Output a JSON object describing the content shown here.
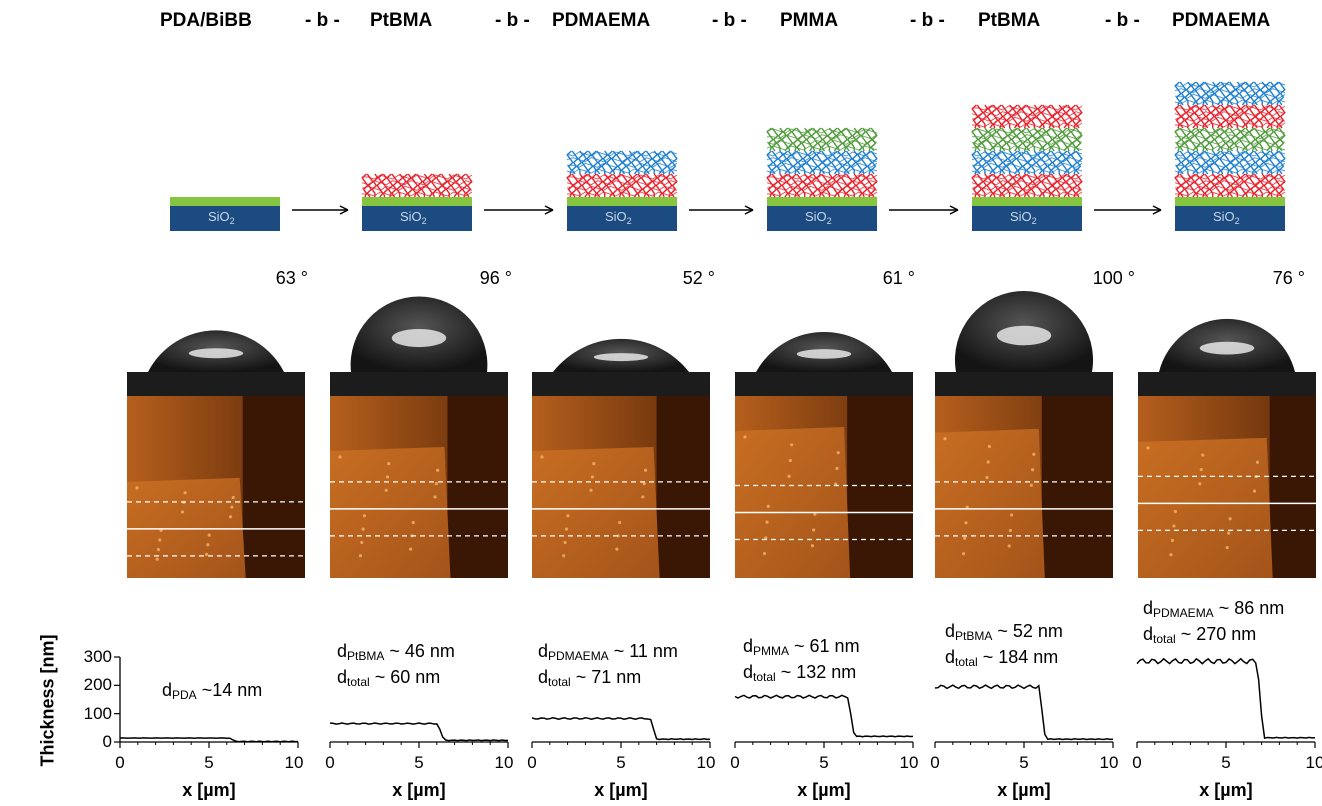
{
  "header": {
    "blocks": [
      "PDA/BiBB",
      "PtBMA",
      "PDMAEMA",
      "PMMA",
      "PtBMA",
      "PDMAEMA"
    ],
    "connector": "- b -"
  },
  "substrate_label": {
    "base": "SiO",
    "sub": "2"
  },
  "layer_colors": {
    "PtBMA": "#e8202a",
    "PDMAEMA": "#1f7fcf",
    "PMMA": "#4f9a3a",
    "PDA": "#86c540",
    "SiO2": "#1b4b80"
  },
  "schematic_stacks": [
    [],
    [
      "PtBMA"
    ],
    [
      "PtBMA",
      "PDMAEMA"
    ],
    [
      "PtBMA",
      "PDMAEMA",
      "PMMA"
    ],
    [
      "PtBMA",
      "PDMAEMA",
      "PMMA",
      "PtBMA"
    ],
    [
      "PtBMA",
      "PDMAEMA",
      "PMMA",
      "PtBMA",
      "PDMAEMA"
    ]
  ],
  "contact_angles": [
    "63 °",
    "96 °",
    "52 °",
    "61 °",
    "100 °",
    "76 °"
  ],
  "droplet_angles_deg": [
    63,
    96,
    52,
    61,
    100,
    76
  ],
  "annotations": [
    [
      {
        "base": "d",
        "sub": "PDA",
        "text": " ~14 nm"
      }
    ],
    [
      {
        "base": "d",
        "sub": "PtBMA",
        "text": " ~ 46 nm"
      },
      {
        "base": "d",
        "sub": "total",
        "text": " ~ 60 nm"
      }
    ],
    [
      {
        "base": "d",
        "sub": "PDMAEMA",
        "text": " ~ 11 nm"
      },
      {
        "base": "d",
        "sub": "total",
        "text": " ~ 71 nm"
      }
    ],
    [
      {
        "base": "d",
        "sub": "PMMA",
        "text": " ~ 61 nm"
      },
      {
        "base": "d",
        "sub": "total",
        "text": " ~ 132 nm"
      }
    ],
    [
      {
        "base": "d",
        "sub": "PtBMA",
        "text": " ~ 52 nm"
      },
      {
        "base": "d",
        "sub": "total",
        "text": " ~ 184 nm"
      }
    ],
    [
      {
        "base": "d",
        "sub": "PDMAEMA",
        "text": " ~ 86 nm"
      },
      {
        "base": "d",
        "sub": "total",
        "text": " ~ 270 nm"
      }
    ]
  ],
  "chart_data": {
    "type": "line",
    "ylabel": "Thickness [nm]",
    "xlabel": "x [µm]",
    "xlim": [
      0,
      10
    ],
    "ylim": [
      0,
      300
    ],
    "xticks": [
      0,
      5,
      10
    ],
    "yticks": [
      0,
      100,
      200,
      300
    ],
    "profiles": [
      {
        "plateau": 14,
        "edge": 6.3,
        "floor": 2
      },
      {
        "plateau": 65,
        "edge": 6.2,
        "floor": 6
      },
      {
        "plateau": 83,
        "edge": 6.8,
        "floor": 10
      },
      {
        "plateau": 160,
        "edge": 6.5,
        "floor": 20
      },
      {
        "plateau": 195,
        "edge": 6.0,
        "floor": 10
      },
      {
        "plateau": 285,
        "edge": 6.9,
        "floor": 15
      }
    ]
  }
}
